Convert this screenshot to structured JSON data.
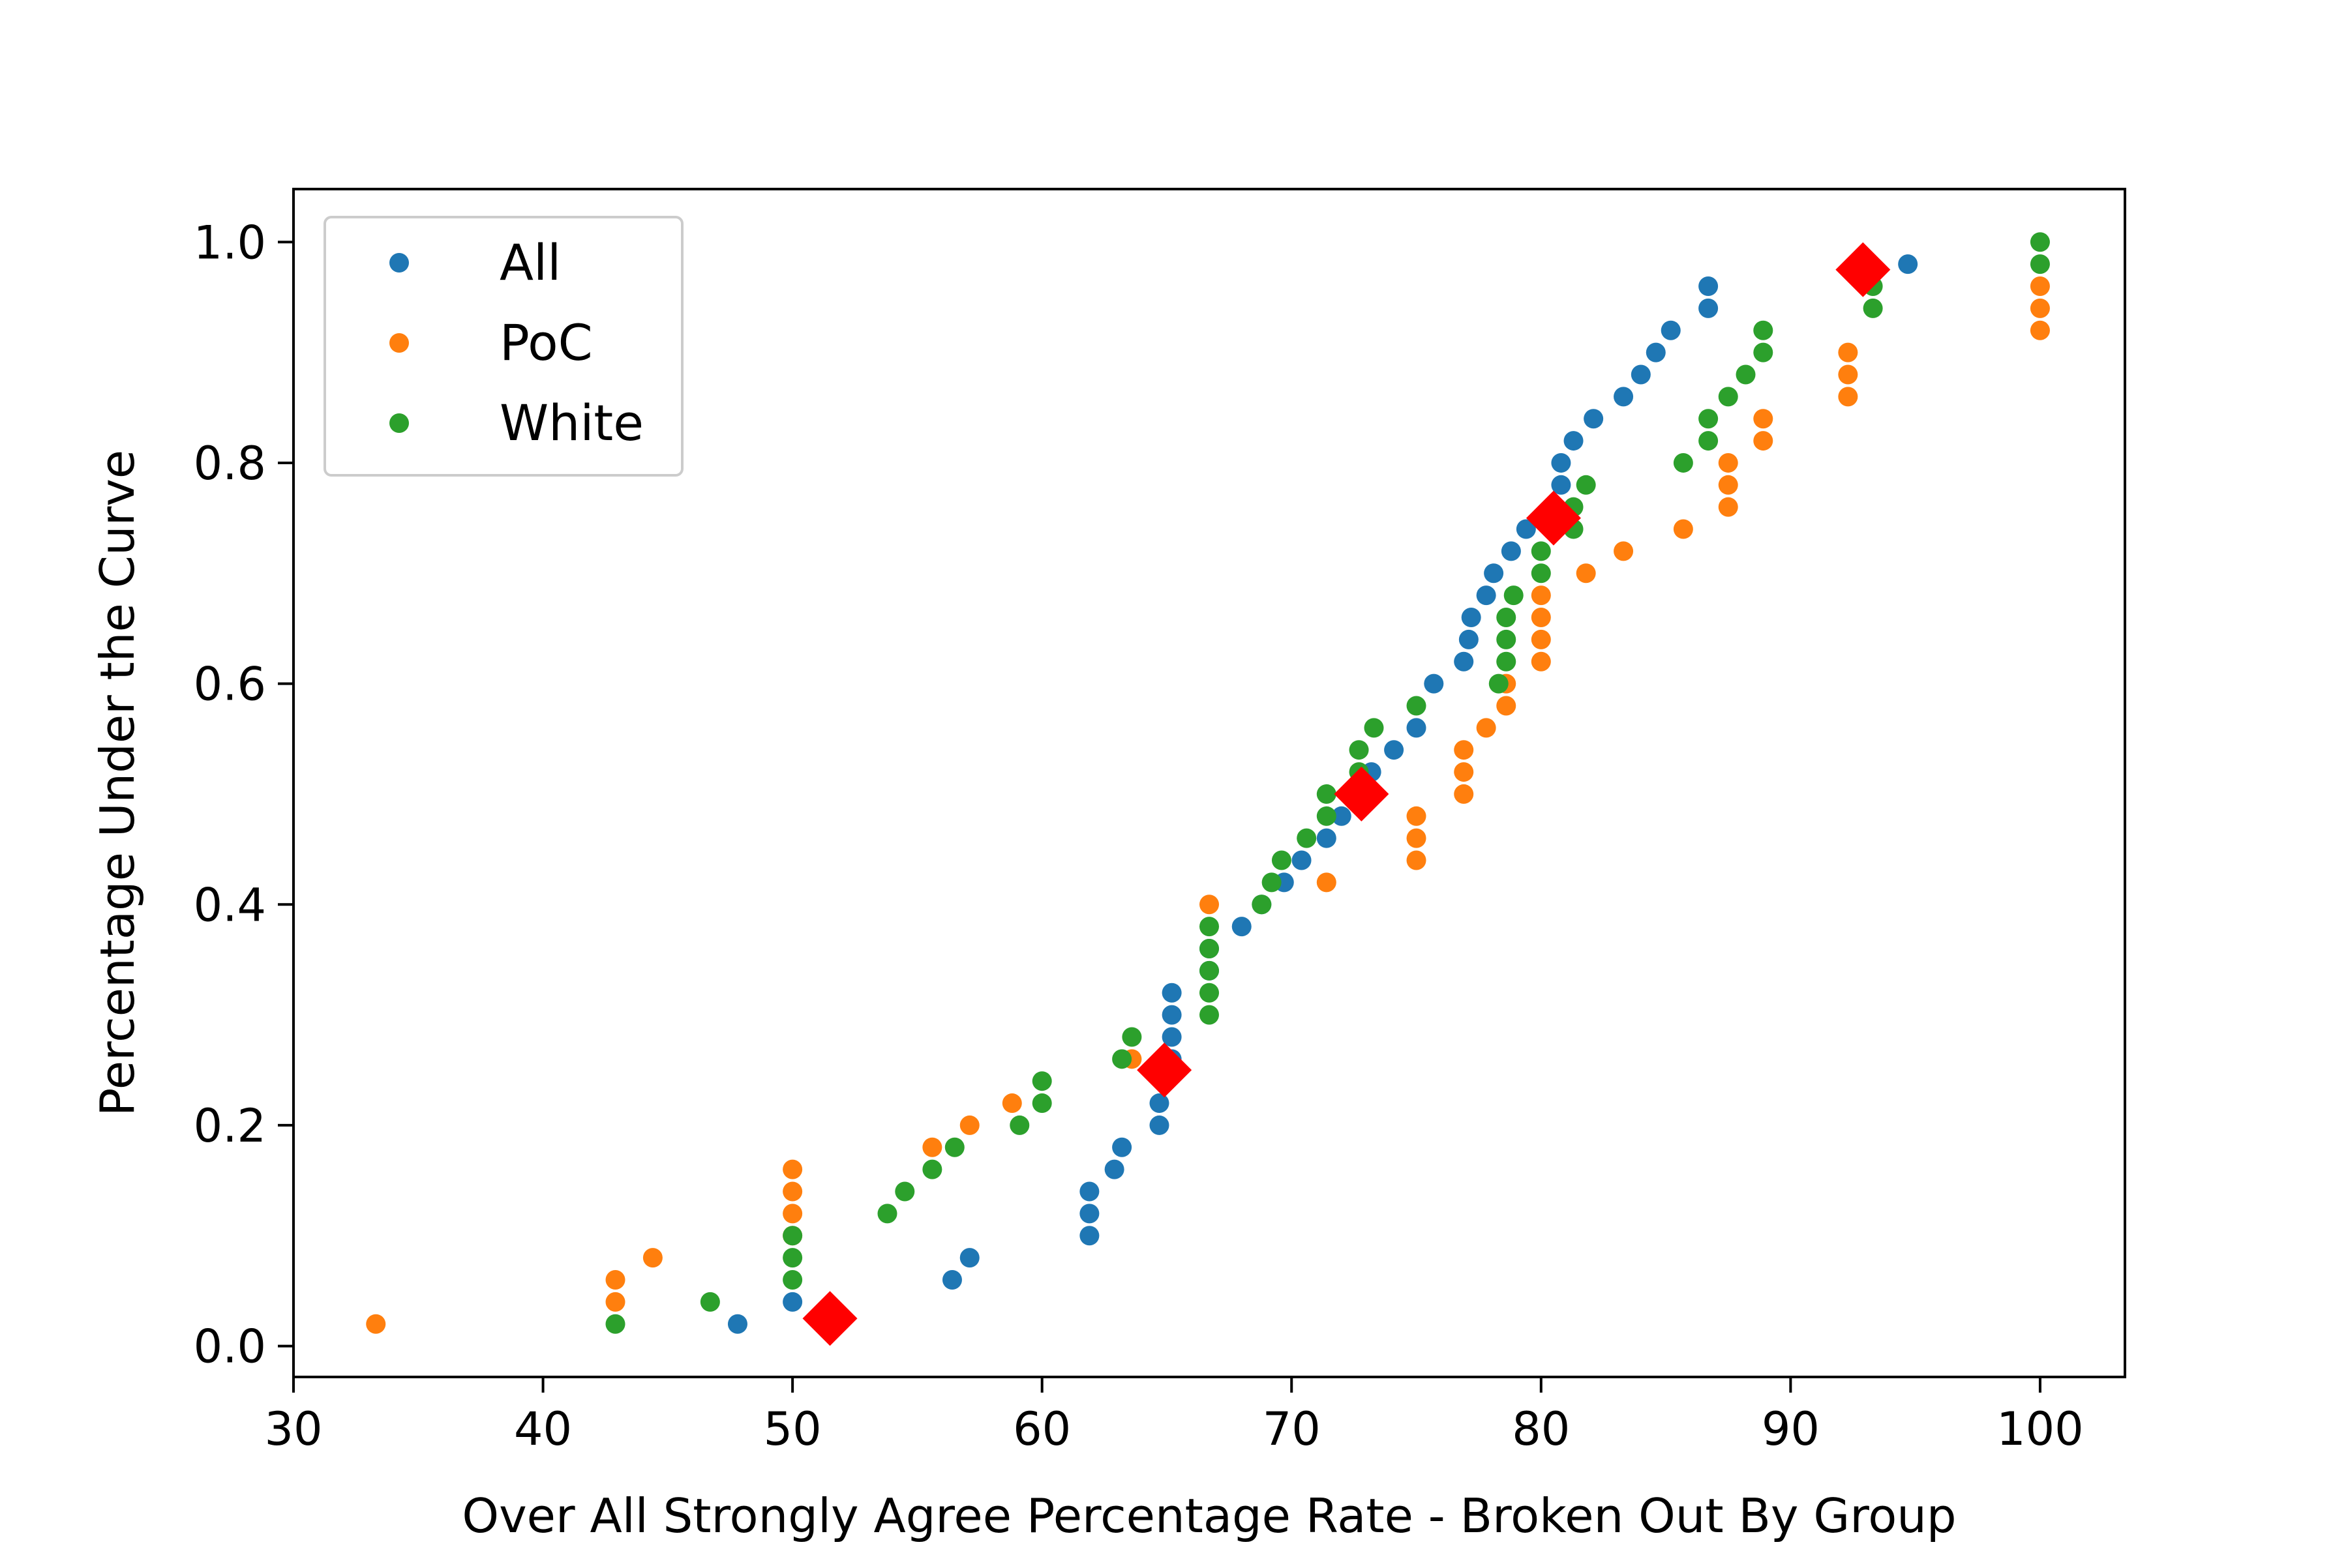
{
  "chart_data": {
    "type": "scatter",
    "title": "",
    "xlabel": "Over All Strongly Agree Percentage Rate - Broken Out By Group",
    "ylabel": "Percentage Under the Curve",
    "xlim": [
      30,
      103.4
    ],
    "ylim": [
      -0.028,
      1.048
    ],
    "xticks": [
      "30",
      "40",
      "50",
      "60",
      "70",
      "80",
      "90",
      "100"
    ],
    "yticks": [
      "0.0",
      "0.2",
      "0.4",
      "0.6",
      "0.8",
      "1.0"
    ],
    "grid": false,
    "legend_position": "top-left",
    "series": [
      {
        "name": "All",
        "color": "#1f77b4",
        "marker": "circle",
        "points": [
          [
            47.8,
            0.02
          ],
          [
            50.0,
            0.04
          ],
          [
            56.4,
            0.06
          ],
          [
            57.1,
            0.08
          ],
          [
            61.9,
            0.1
          ],
          [
            61.9,
            0.12
          ],
          [
            61.9,
            0.14
          ],
          [
            62.9,
            0.16
          ],
          [
            63.2,
            0.18
          ],
          [
            64.7,
            0.2
          ],
          [
            64.7,
            0.22
          ],
          [
            65.0,
            0.24
          ],
          [
            65.2,
            0.26
          ],
          [
            65.2,
            0.28
          ],
          [
            65.2,
            0.3
          ],
          [
            65.2,
            0.32
          ],
          [
            66.7,
            0.34
          ],
          [
            66.7,
            0.36
          ],
          [
            68.0,
            0.38
          ],
          [
            68.8,
            0.4
          ],
          [
            69.7,
            0.42
          ],
          [
            70.4,
            0.44
          ],
          [
            71.4,
            0.46
          ],
          [
            72.0,
            0.48
          ],
          [
            72.7,
            0.5
          ],
          [
            73.2,
            0.52
          ],
          [
            74.1,
            0.54
          ],
          [
            75.0,
            0.56
          ],
          [
            75.7,
            0.6
          ],
          [
            76.9,
            0.62
          ],
          [
            77.1,
            0.64
          ],
          [
            77.2,
            0.66
          ],
          [
            77.8,
            0.68
          ],
          [
            78.1,
            0.7
          ],
          [
            78.8,
            0.72
          ],
          [
            79.4,
            0.74
          ],
          [
            80.5,
            0.76
          ],
          [
            80.8,
            0.78
          ],
          [
            80.8,
            0.8
          ],
          [
            81.3,
            0.82
          ],
          [
            82.1,
            0.84
          ],
          [
            83.3,
            0.86
          ],
          [
            84.0,
            0.88
          ],
          [
            84.6,
            0.9
          ],
          [
            85.2,
            0.92
          ],
          [
            86.7,
            0.94
          ],
          [
            86.7,
            0.96
          ],
          [
            94.7,
            0.98
          ]
        ]
      },
      {
        "name": "PoC",
        "color": "#ff7f0e",
        "marker": "circle",
        "points": [
          [
            33.3,
            0.02
          ],
          [
            42.9,
            0.04
          ],
          [
            42.9,
            0.06
          ],
          [
            44.4,
            0.08
          ],
          [
            50.0,
            0.1
          ],
          [
            50.0,
            0.12
          ],
          [
            50.0,
            0.14
          ],
          [
            50.0,
            0.16
          ],
          [
            55.6,
            0.18
          ],
          [
            57.1,
            0.2
          ],
          [
            58.8,
            0.22
          ],
          [
            63.6,
            0.26
          ],
          [
            66.7,
            0.4
          ],
          [
            71.4,
            0.42
          ],
          [
            75.0,
            0.44
          ],
          [
            75.0,
            0.46
          ],
          [
            75.0,
            0.48
          ],
          [
            76.9,
            0.5
          ],
          [
            76.9,
            0.52
          ],
          [
            76.9,
            0.54
          ],
          [
            77.8,
            0.56
          ],
          [
            78.6,
            0.58
          ],
          [
            78.6,
            0.6
          ],
          [
            80.0,
            0.62
          ],
          [
            80.0,
            0.64
          ],
          [
            80.0,
            0.66
          ],
          [
            80.0,
            0.68
          ],
          [
            81.8,
            0.7
          ],
          [
            83.3,
            0.72
          ],
          [
            85.7,
            0.74
          ],
          [
            87.5,
            0.76
          ],
          [
            87.5,
            0.78
          ],
          [
            87.5,
            0.8
          ],
          [
            88.9,
            0.82
          ],
          [
            88.9,
            0.84
          ],
          [
            92.3,
            0.86
          ],
          [
            92.3,
            0.88
          ],
          [
            92.3,
            0.9
          ],
          [
            100.0,
            0.92
          ],
          [
            100.0,
            0.94
          ],
          [
            100.0,
            0.96
          ]
        ]
      },
      {
        "name": "White",
        "color": "#2ca02c",
        "marker": "circle",
        "points": [
          [
            42.9,
            0.02
          ],
          [
            46.7,
            0.04
          ],
          [
            50.0,
            0.06
          ],
          [
            50.0,
            0.08
          ],
          [
            50.0,
            0.1
          ],
          [
            53.8,
            0.12
          ],
          [
            54.5,
            0.14
          ],
          [
            55.6,
            0.16
          ],
          [
            56.5,
            0.18
          ],
          [
            59.1,
            0.2
          ],
          [
            60.0,
            0.22
          ],
          [
            60.0,
            0.24
          ],
          [
            63.2,
            0.26
          ],
          [
            63.6,
            0.28
          ],
          [
            66.7,
            0.3
          ],
          [
            66.7,
            0.32
          ],
          [
            66.7,
            0.34
          ],
          [
            66.7,
            0.36
          ],
          [
            66.7,
            0.38
          ],
          [
            68.8,
            0.4
          ],
          [
            69.2,
            0.42
          ],
          [
            69.6,
            0.44
          ],
          [
            70.6,
            0.46
          ],
          [
            71.4,
            0.48
          ],
          [
            71.4,
            0.5
          ],
          [
            72.7,
            0.52
          ],
          [
            72.7,
            0.54
          ],
          [
            73.3,
            0.56
          ],
          [
            75.0,
            0.58
          ],
          [
            78.3,
            0.6
          ],
          [
            78.6,
            0.62
          ],
          [
            78.6,
            0.64
          ],
          [
            78.6,
            0.66
          ],
          [
            78.9,
            0.68
          ],
          [
            80.0,
            0.7
          ],
          [
            80.0,
            0.72
          ],
          [
            81.3,
            0.74
          ],
          [
            81.3,
            0.76
          ],
          [
            81.8,
            0.78
          ],
          [
            85.7,
            0.8
          ],
          [
            86.7,
            0.82
          ],
          [
            86.7,
            0.84
          ],
          [
            87.5,
            0.86
          ],
          [
            88.2,
            0.88
          ],
          [
            88.9,
            0.9
          ],
          [
            88.9,
            0.92
          ],
          [
            93.3,
            0.94
          ],
          [
            93.3,
            0.96
          ],
          [
            100.0,
            0.98
          ],
          [
            100.0,
            1.0
          ]
        ]
      },
      {
        "name": "",
        "color": "#ff0000",
        "marker": "diamond",
        "points": [
          [
            51.5,
            0.025
          ],
          [
            64.9,
            0.25
          ],
          [
            72.8,
            0.5
          ],
          [
            80.5,
            0.75
          ],
          [
            92.9,
            0.975
          ]
        ]
      }
    ]
  }
}
